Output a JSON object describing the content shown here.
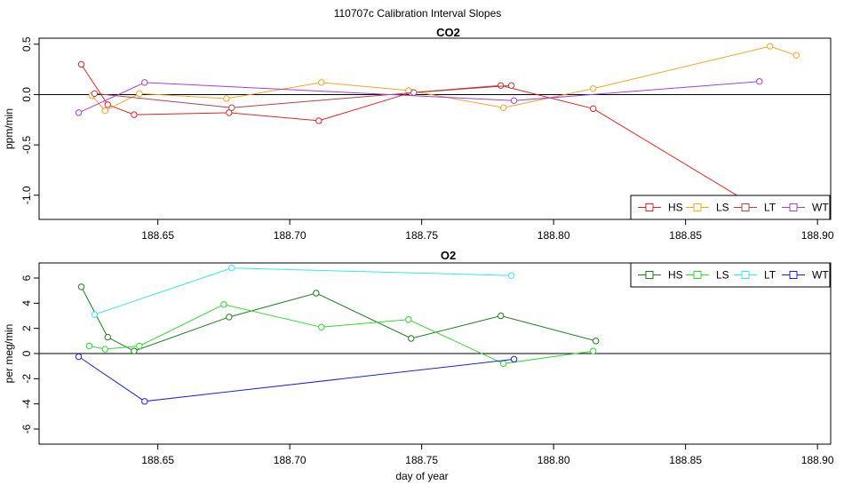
{
  "figure": {
    "title": "110707c   Calibration Interval Slopes",
    "xlabel": "day of year"
  },
  "chart_data": [
    {
      "type": "line",
      "title": "CO2",
      "ylabel": "ppm/min",
      "xlabel": "",
      "xlim": [
        188.605,
        188.905
      ],
      "ylim": [
        -1.24,
        0.56
      ],
      "xticks": [
        188.65,
        188.7,
        188.75,
        188.8,
        188.85,
        188.9
      ],
      "xtick_labels": [
        "188.65",
        "188.70",
        "188.75",
        "188.80",
        "188.85",
        "188.90"
      ],
      "yticks": [
        0.5,
        0.0,
        -0.5,
        -1.0
      ],
      "ytick_labels": [
        "0.5",
        "0.0",
        "-0.5",
        "-1.0"
      ],
      "hline": 0,
      "legend_position": "bottom-right",
      "series": [
        {
          "name": "HS",
          "color": "#e02424",
          "x": [
            188.621,
            188.631,
            188.641,
            188.677,
            188.711,
            188.746,
            188.78,
            188.815,
            188.877
          ],
          "y": [
            0.3,
            -0.1,
            -0.2,
            -0.18,
            -0.26,
            0.02,
            0.09,
            -0.14,
            -1.12
          ],
          "markers": [
            true,
            true,
            true,
            true,
            true,
            true,
            true,
            true,
            false
          ]
        },
        {
          "name": "LS",
          "color": "#f0a626",
          "x": [
            188.625,
            188.63,
            188.643,
            188.676,
            188.712,
            188.745,
            188.781,
            188.815,
            188.882,
            188.892
          ],
          "y": [
            -0.01,
            -0.16,
            0.01,
            -0.04,
            0.12,
            0.04,
            -0.13,
            0.06,
            0.48,
            0.39
          ]
        },
        {
          "name": "LT",
          "color": "#a84848",
          "x": [
            188.626,
            188.678,
            188.747,
            188.784
          ],
          "y": [
            0.01,
            -0.13,
            0.02,
            0.09
          ]
        },
        {
          "name": "WT",
          "color": "#a040e0",
          "x": [
            188.62,
            188.645,
            188.785,
            188.878
          ],
          "y": [
            -0.18,
            0.12,
            -0.06,
            0.13
          ]
        }
      ]
    },
    {
      "type": "line",
      "title": "O2",
      "ylabel": "per meg/min",
      "xlabel": "day of year",
      "xlim": [
        188.605,
        188.905
      ],
      "ylim": [
        -7.2,
        7.2
      ],
      "xticks": [
        188.65,
        188.7,
        188.75,
        188.8,
        188.85,
        188.9
      ],
      "xtick_labels": [
        "188.65",
        "188.70",
        "188.75",
        "188.80",
        "188.85",
        "188.90"
      ],
      "yticks": [
        6,
        4,
        2,
        0,
        -2,
        -4,
        -6
      ],
      "ytick_labels": [
        "6",
        "4",
        "2",
        "0",
        "-2",
        "-4",
        "-6"
      ],
      "hline": 0,
      "legend_position": "top-right",
      "series": [
        {
          "name": "HS",
          "color": "#1f7a1f",
          "x": [
            188.621,
            188.631,
            188.641,
            188.677,
            188.71,
            188.746,
            188.78,
            188.816
          ],
          "y": [
            5.3,
            1.3,
            0.2,
            2.9,
            4.8,
            1.2,
            3.0,
            1.0
          ]
        },
        {
          "name": "LS",
          "color": "#33d633",
          "x": [
            188.624,
            188.63,
            188.643,
            188.675,
            188.712,
            188.745,
            188.781,
            188.815
          ],
          "y": [
            0.6,
            0.35,
            0.6,
            3.9,
            2.1,
            2.7,
            -0.8,
            0.2
          ]
        },
        {
          "name": "LT",
          "color": "#38e8e8",
          "x": [
            188.626,
            188.678,
            188.784
          ],
          "y": [
            3.1,
            6.8,
            6.2
          ]
        },
        {
          "name": "WT",
          "color": "#2020d8",
          "x": [
            188.62,
            188.645,
            188.785
          ],
          "y": [
            -0.25,
            -3.8,
            -0.45
          ]
        }
      ]
    }
  ]
}
